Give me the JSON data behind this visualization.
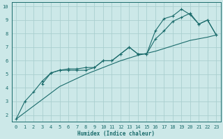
{
  "xlabel": "Humidex (Indice chaleur)",
  "bg_color": "#cce8e8",
  "grid_color": "#aacfcf",
  "line_color": "#1a6b6b",
  "xlim": [
    -0.5,
    23.5
  ],
  "ylim": [
    1.5,
    10.3
  ],
  "xticks": [
    0,
    1,
    2,
    3,
    4,
    5,
    6,
    7,
    8,
    9,
    10,
    11,
    12,
    13,
    14,
    15,
    16,
    17,
    18,
    19,
    20,
    21,
    22,
    23
  ],
  "yticks": [
    2,
    3,
    4,
    5,
    6,
    7,
    8,
    9,
    10
  ],
  "line1_x": [
    0,
    1,
    2,
    3,
    4,
    5,
    6,
    7,
    8,
    9,
    10,
    11,
    12,
    13,
    14,
    15,
    16,
    17,
    18,
    19,
    20,
    21,
    22,
    23
  ],
  "line1_y": [
    1.7,
    3.0,
    3.7,
    4.5,
    5.1,
    5.3,
    5.3,
    5.3,
    5.3,
    5.5,
    6.0,
    6.0,
    6.5,
    7.0,
    6.5,
    6.5,
    8.2,
    9.1,
    9.3,
    9.8,
    9.4,
    8.7,
    9.0,
    7.9
  ],
  "line2_x": [
    3,
    4,
    5,
    6,
    7,
    8,
    9,
    10,
    11,
    12,
    13,
    14,
    15,
    16,
    17,
    18,
    19,
    20,
    21,
    22,
    23
  ],
  "line2_y": [
    4.3,
    5.1,
    5.3,
    5.4,
    5.4,
    5.5,
    5.5,
    6.0,
    6.0,
    6.5,
    7.0,
    6.5,
    6.5,
    7.6,
    8.2,
    8.9,
    9.2,
    9.5,
    8.7,
    9.0,
    7.9
  ],
  "line3_x": [
    0,
    1,
    2,
    3,
    4,
    5,
    6,
    7,
    8,
    9,
    10,
    11,
    12,
    13,
    14,
    15,
    16,
    17,
    18,
    19,
    20,
    21,
    22,
    23
  ],
  "line3_y": [
    1.7,
    2.18,
    2.66,
    3.14,
    3.62,
    4.1,
    4.4,
    4.7,
    5.0,
    5.25,
    5.5,
    5.75,
    6.0,
    6.2,
    6.4,
    6.55,
    6.7,
    6.9,
    7.1,
    7.3,
    7.5,
    7.62,
    7.74,
    7.9
  ]
}
